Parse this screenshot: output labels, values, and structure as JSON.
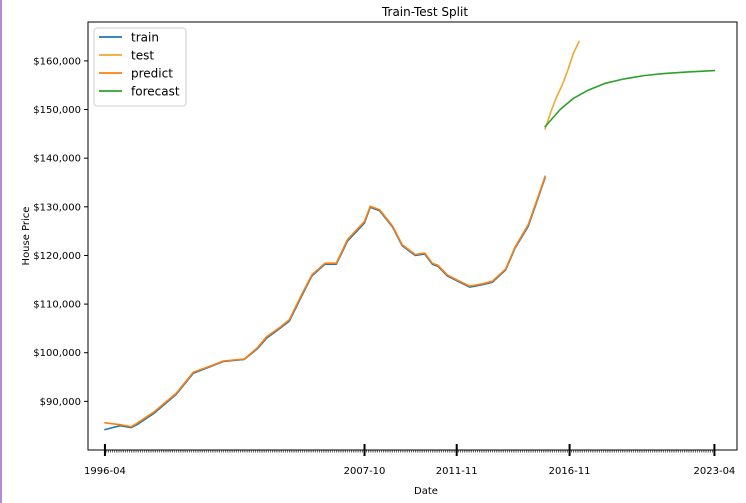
{
  "chart_data": {
    "type": "line",
    "title": "Train-Test Split",
    "xlabel": "Date",
    "ylabel": "House Price",
    "ylim": [
      80000,
      168000
    ],
    "xlim": [
      "1995-07",
      "2024-04"
    ],
    "grid": false,
    "legend": "top-left",
    "x_ticks": [
      "1996-04",
      "2007-10",
      "2011-11",
      "2016-11",
      "2023-04"
    ],
    "y_ticks": [
      {
        "value": 90000,
        "label": "$90,000"
      },
      {
        "value": 100000,
        "label": "$100,000"
      },
      {
        "value": 110000,
        "label": "$110,000"
      },
      {
        "value": 120000,
        "label": "$120,000"
      },
      {
        "value": 130000,
        "label": "$130,000"
      },
      {
        "value": 140000,
        "label": "$140,000"
      },
      {
        "value": 150000,
        "label": "$150,000"
      },
      {
        "value": 160000,
        "label": "$160,000"
      }
    ],
    "series": [
      {
        "name": "train",
        "color": "#1f77b4",
        "x": [
          "1996-04",
          "1996-12",
          "1997-06",
          "1997-09",
          "1998-06",
          "1999-06",
          "2000-03",
          "2001-01",
          "2001-07",
          "2002-06",
          "2003-01",
          "2003-06",
          "2004-01",
          "2004-06",
          "2005-01",
          "2005-06",
          "2006-01",
          "2006-07",
          "2007-01",
          "2007-10",
          "2008-01",
          "2008-06",
          "2009-01",
          "2009-06",
          "2010-01",
          "2010-06",
          "2010-10",
          "2011-01",
          "2011-06",
          "2011-11",
          "2012-06",
          "2013-01",
          "2013-06",
          "2014-01",
          "2014-06",
          "2015-01",
          "2015-06",
          "2015-10"
        ],
        "y": [
          84200,
          85000,
          84600,
          85200,
          87500,
          91500,
          95800,
          97300,
          98200,
          98600,
          100800,
          103000,
          105000,
          106500,
          112000,
          115800,
          118200,
          118200,
          123000,
          126700,
          129900,
          129200,
          125800,
          122000,
          120000,
          120300,
          118200,
          117800,
          115800,
          114800,
          113500,
          114000,
          114500,
          117000,
          121500,
          126000,
          131500,
          136000
        ]
      },
      {
        "name": "test",
        "color": "#f0a830",
        "x": [
          "2015-10",
          "2016-01",
          "2016-04",
          "2016-07",
          "2016-10",
          "2017-01",
          "2017-04"
        ],
        "y": [
          146000,
          149500,
          152500,
          155000,
          158000,
          161500,
          164000
        ]
      },
      {
        "name": "predict",
        "color": "#ff7f0e",
        "x": [
          "1996-04",
          "1996-12",
          "1997-06",
          "1997-09",
          "1998-06",
          "1999-06",
          "2000-03",
          "2001-01",
          "2001-07",
          "2002-06",
          "2003-01",
          "2003-06",
          "2004-01",
          "2004-06",
          "2005-01",
          "2005-06",
          "2006-01",
          "2006-07",
          "2007-01",
          "2007-10",
          "2008-01",
          "2008-06",
          "2009-01",
          "2009-06",
          "2010-01",
          "2010-06",
          "2010-10",
          "2011-01",
          "2011-06",
          "2011-11",
          "2012-06",
          "2013-01",
          "2013-06",
          "2014-01",
          "2014-06",
          "2015-01",
          "2015-06",
          "2015-10"
        ],
        "y": [
          85600,
          85200,
          84800,
          85500,
          87800,
          91700,
          96000,
          97400,
          98300,
          98700,
          101000,
          103300,
          105200,
          106800,
          112300,
          116000,
          118400,
          118400,
          123300,
          127000,
          130100,
          129400,
          126000,
          122200,
          120200,
          120500,
          118400,
          118000,
          116000,
          115000,
          113700,
          114200,
          114700,
          117200,
          121700,
          126300,
          131800,
          136300
        ]
      },
      {
        "name": "forecast",
        "color": "#2ca02c",
        "x": [
          "2015-10",
          "2016-06",
          "2017-01",
          "2017-09",
          "2018-06",
          "2019-04",
          "2020-03",
          "2021-01",
          "2022-01",
          "2023-04"
        ],
        "y": [
          146500,
          150000,
          152300,
          154000,
          155400,
          156300,
          157000,
          157400,
          157700,
          158000
        ]
      }
    ]
  }
}
